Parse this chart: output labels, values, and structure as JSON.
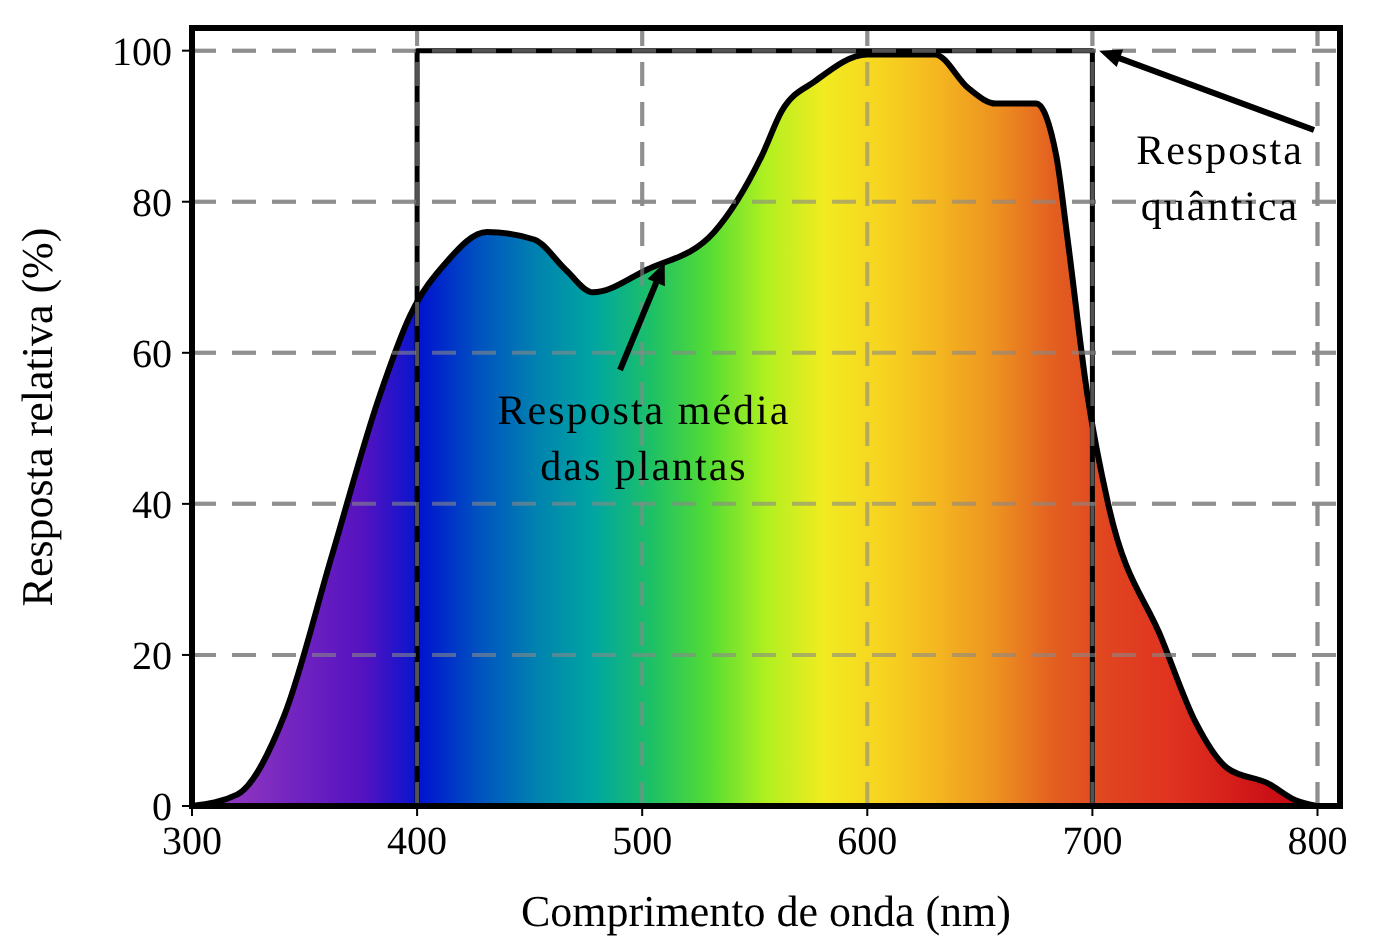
{
  "chart_data": {
    "type": "area",
    "xlabel": "Comprimento de onda (nm)",
    "ylabel": "Resposta relativa (%)",
    "xlim": [
      300,
      810
    ],
    "ylim": [
      0,
      103
    ],
    "xticks": [
      300,
      400,
      500,
      600,
      700,
      800
    ],
    "yticks": [
      0,
      20,
      40,
      60,
      80,
      100
    ],
    "grid": true,
    "marker": "none",
    "line_style": "solid",
    "series": [
      {
        "color": "#000000",
        "x": [
          300,
          320,
          341,
          362,
          383,
          397,
          413,
          431,
          452,
          466,
          478,
          502,
          532,
          553,
          562,
          577,
          600,
          630,
          645,
          657,
          675,
          684,
          689,
          698,
          707,
          731,
          746,
          760,
          778,
          790,
          800
        ],
        "values": [
          0,
          1.5,
          12,
          33,
          54,
          65,
          72,
          76,
          75,
          71,
          68,
          71,
          76,
          86,
          92,
          96,
          99.5,
          99.5,
          95,
          93,
          93,
          86,
          75,
          54,
          40,
          22,
          11,
          5,
          3,
          0.8,
          0
        ]
      },
      {
        "type": "line",
        "color": "#000000",
        "x": [
          400,
          400,
          700,
          700
        ],
        "values": [
          0,
          100,
          100,
          0
        ]
      }
    ],
    "annotations": [
      {
        "text": "Resposta média\ndas plantas",
        "x": 510,
        "y": 72
      },
      {
        "text": "Resposta\nquântica",
        "x": 703,
        "y": 100
      }
    ]
  }
}
